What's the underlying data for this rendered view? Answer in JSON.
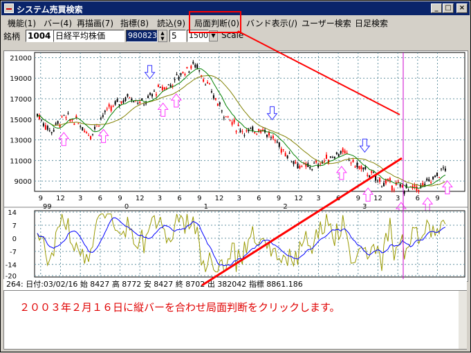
{
  "window": {
    "title": "システム売買検索",
    "minimize_glyph": "_",
    "maximize_glyph": "□",
    "close_glyph": "×"
  },
  "menu": [
    {
      "label": "機能(1)"
    },
    {
      "label": "バー(4)"
    },
    {
      "label": "再描画(7)"
    },
    {
      "label": "指標(8)"
    },
    {
      "label": "読込(9)"
    },
    {
      "label": "局面判断(0)"
    },
    {
      "label": "バンド表示(/)"
    },
    {
      "label": "ユーザー検索"
    },
    {
      "label": "日足検索"
    }
  ],
  "toolbar": {
    "stock_label": "銘柄",
    "code": "1004",
    "name": "日経平均株価",
    "date": "980823",
    "param": "5",
    "range": "1500",
    "scale_label": "Scale"
  },
  "price_axis": [
    "21000",
    "19000",
    "17000",
    "15000",
    "13000",
    "11000",
    "9000"
  ],
  "month_axis": {
    "months": [
      "9",
      "12",
      "3",
      "6",
      "9",
      "12",
      "3",
      "6",
      "9",
      "12",
      "3",
      "6",
      "9",
      "12",
      "3",
      "6",
      "9",
      "12",
      "3",
      "6",
      "9"
    ],
    "years": [
      "99",
      "0",
      "1",
      "2",
      "3"
    ]
  },
  "osc_axis": [
    "14",
    "7",
    "0",
    "-7",
    "-14",
    "-20"
  ],
  "status": {
    "index": "264:",
    "date": "日付:03/02/16",
    "open": "始 8427",
    "high": "高 8772",
    "low": "安 8427",
    "close": "終 8702",
    "volume": "出 382042",
    "indicator": "指標 8861.186"
  },
  "annotation": {
    "memo": "２００３年２月１６日に縦バーを合わせ局面判断をクリックします。"
  },
  "colors": {
    "titlebar": "#0a246a",
    "highlight": "#ff0000",
    "cursor_bar": "#cc00cc",
    "up_arrow": "#ff33ff",
    "down_arrow": "#3333ff",
    "candle_up": "#ff0000",
    "candle_down": "#000000",
    "ma_short": "#008000",
    "ma_long": "#808000",
    "osc_fast": "#999900",
    "osc_slow": "#0000ff"
  },
  "chart_data": {
    "type": "line",
    "title": "",
    "series": [
      {
        "name": "",
        "values_x_month_index": [
          0,
          2,
          4,
          6,
          8,
          10,
          12,
          14,
          16,
          18,
          20,
          22,
          24,
          26,
          28,
          30,
          32,
          34,
          36,
          38,
          40,
          42,
          44,
          46,
          48,
          50,
          52,
          54,
          56,
          58,
          60,
          62
        ],
        "values": [
          15500,
          13800,
          15200,
          14800,
          13500,
          15500,
          16500,
          17300,
          16500,
          17800,
          18300,
          19600,
          20400,
          18000,
          15800,
          14300,
          13700,
          14200,
          12800,
          11500,
          10300,
          10500,
          11200,
          11900,
          10600,
          9800,
          8900,
          8600,
          8200,
          8400,
          9300,
          10500
        ]
      }
    ],
    "down_arrows_months": [
      17,
      23.5,
      35.5,
      49.5
    ],
    "up_arrows_months": [
      4,
      10,
      19,
      21,
      46,
      50,
      55,
      59,
      62
    ],
    "ylim": [
      8000,
      21500
    ]
  }
}
